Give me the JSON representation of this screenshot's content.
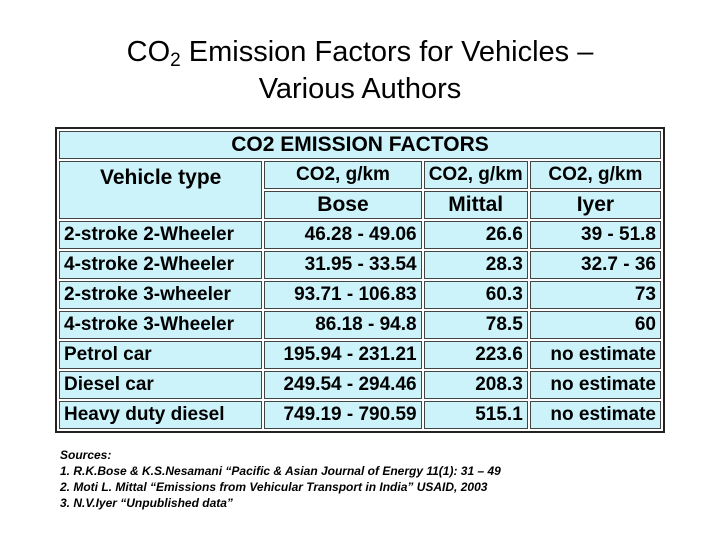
{
  "title": {
    "co": "CO",
    "sub": "2",
    "rest": "Emission Factors for Vehicles –",
    "line2": "Various Authors"
  },
  "table": {
    "caption": "CO2 EMISSION FACTORS",
    "vehicle_header": "Vehicle type",
    "unit_headers": [
      "CO2, g/km",
      "CO2, g/km",
      "CO2, g/km"
    ],
    "authors": [
      "Bose",
      "Mittal",
      "Iyer"
    ],
    "rows": [
      [
        "2-stroke 2-Wheeler",
        "46.28 - 49.06",
        "26.6",
        "39 - 51.8"
      ],
      [
        "4-stroke 2-Wheeler",
        "31.95 - 33.54",
        "28.3",
        "32.7 - 36"
      ],
      [
        "2-stroke 3-wheeler",
        "93.71 - 106.83",
        "60.3",
        "73"
      ],
      [
        "4-stroke 3-Wheeler",
        "86.18 - 94.8",
        "78.5",
        "60"
      ],
      [
        "Petrol car",
        "195.94 - 231.21",
        "223.6",
        "no estimate"
      ],
      [
        "Diesel car",
        "249.54 - 294.46",
        "208.3",
        "no estimate"
      ],
      [
        "Heavy duty diesel",
        "749.19 - 790.59",
        "515.1",
        "no estimate"
      ]
    ]
  },
  "sources": {
    "heading": "Sources:",
    "items": [
      "1. R.K.Bose & K.S.Nesamani “Pacific & Asian Journal of Energy 11(1): 31 – 49",
      "2. Moti L. Mittal “Emissions from Vehicular Transport in India” USAID, 2003",
      "3. N.V.Iyer “Unpublished data”"
    ]
  }
}
